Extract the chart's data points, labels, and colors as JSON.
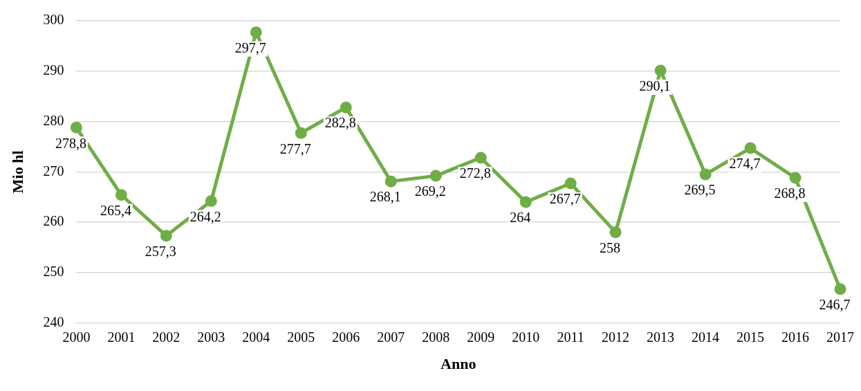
{
  "chart_data": {
    "type": "line",
    "xlabel": "Anno",
    "ylabel": "Mio hl",
    "categories": [
      "2000",
      "2001",
      "2002",
      "2003",
      "2004",
      "2005",
      "2006",
      "2007",
      "2008",
      "2009",
      "2010",
      "2011",
      "2012",
      "2013",
      "2014",
      "2015",
      "2016",
      "2017"
    ],
    "series": [
      {
        "color": "#70ad47",
        "values": [
          278.8,
          265.4,
          257.3,
          264.2,
          297.7,
          277.7,
          282.8,
          268.1,
          269.2,
          272.8,
          264,
          267.7,
          258,
          290.1,
          269.5,
          274.7,
          268.8,
          246.7
        ],
        "value_labels": [
          "278,8",
          "265,4",
          "257,3",
          "264,2",
          "297,7",
          "277,7",
          "282,8",
          "268,1",
          "269,2",
          "272,8",
          "264",
          "267,7",
          "258",
          "290,1",
          "269,5",
          "274,7",
          "268,8",
          "246,7"
        ]
      }
    ],
    "ylim": [
      240,
      300
    ],
    "yticks": [
      240,
      250,
      260,
      270,
      280,
      290,
      300
    ],
    "grid": "y",
    "legend": false,
    "marker": "circle",
    "line_style": "solid"
  }
}
